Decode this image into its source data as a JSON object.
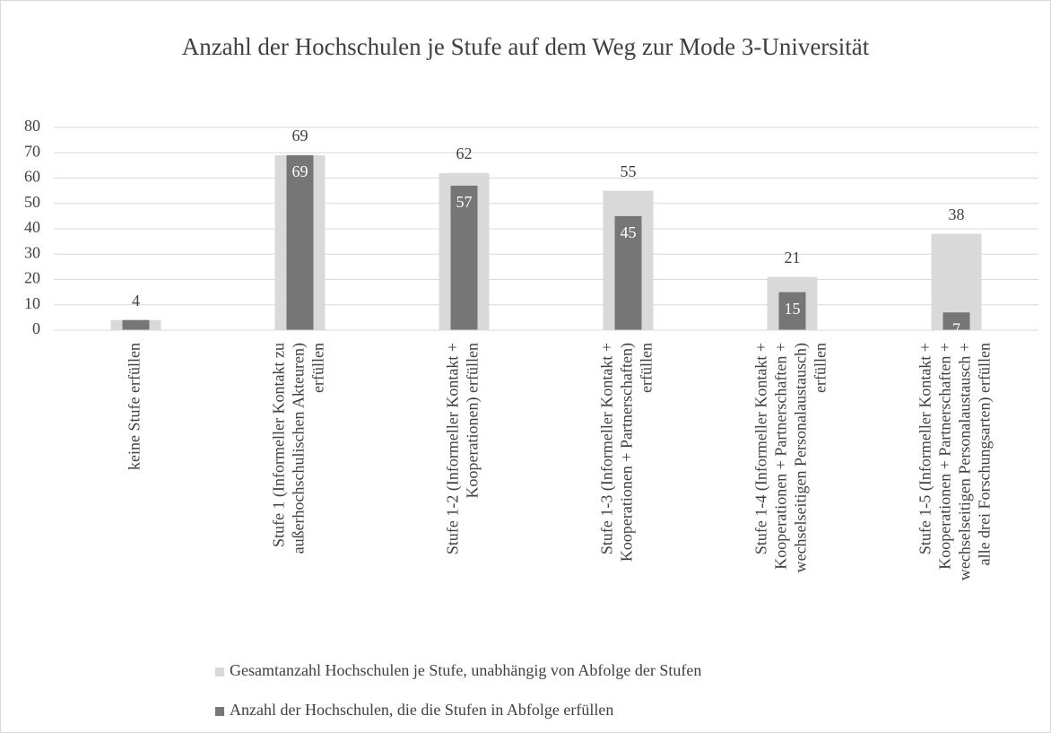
{
  "chart_data": {
    "type": "bar",
    "title": "Anzahl der Hochschulen je Stufe auf dem Weg zur Mode 3-Universität",
    "categories": [
      "keine Stufe erfüllen",
      "Stufe 1 (Informeller Kontakt zu außerhochschulischen Akteuren) erfüllen",
      "Stufe 1-2 (Informeller Kontakt + Kooperationen) erfüllen",
      "Stufe 1-3 (Informeller Kontakt + Kooperationen + Partnerschaften) erfüllen",
      "Stufe 1-4 (Informeller Kontakt + Kooperationen + Partnerschaften + wechselseitigen Personalaustausch) erfüllen",
      "Stufe 1-5 (Informeller Kontakt + Kooperationen + Partnerschaften + wechselseitigen Personalaustausch + alle drei Forschungsarten) erfüllen"
    ],
    "series": [
      {
        "name": "Gesamtanzahl Hochschulen je Stufe, unabhängig von Abfolge der Stufen",
        "color": "#d9d9d9",
        "values": [
          4,
          69,
          62,
          55,
          21,
          38
        ]
      },
      {
        "name": "Anzahl der Hochschulen, die die Stufen in Abfolge erfüllen",
        "color": "#767676",
        "values": [
          4,
          69,
          57,
          45,
          15,
          7
        ]
      }
    ],
    "ylim": [
      0,
      80
    ],
    "yticks": [
      0,
      10,
      20,
      30,
      40,
      50,
      60,
      70,
      80
    ],
    "grid": true,
    "legend": "bottom"
  }
}
